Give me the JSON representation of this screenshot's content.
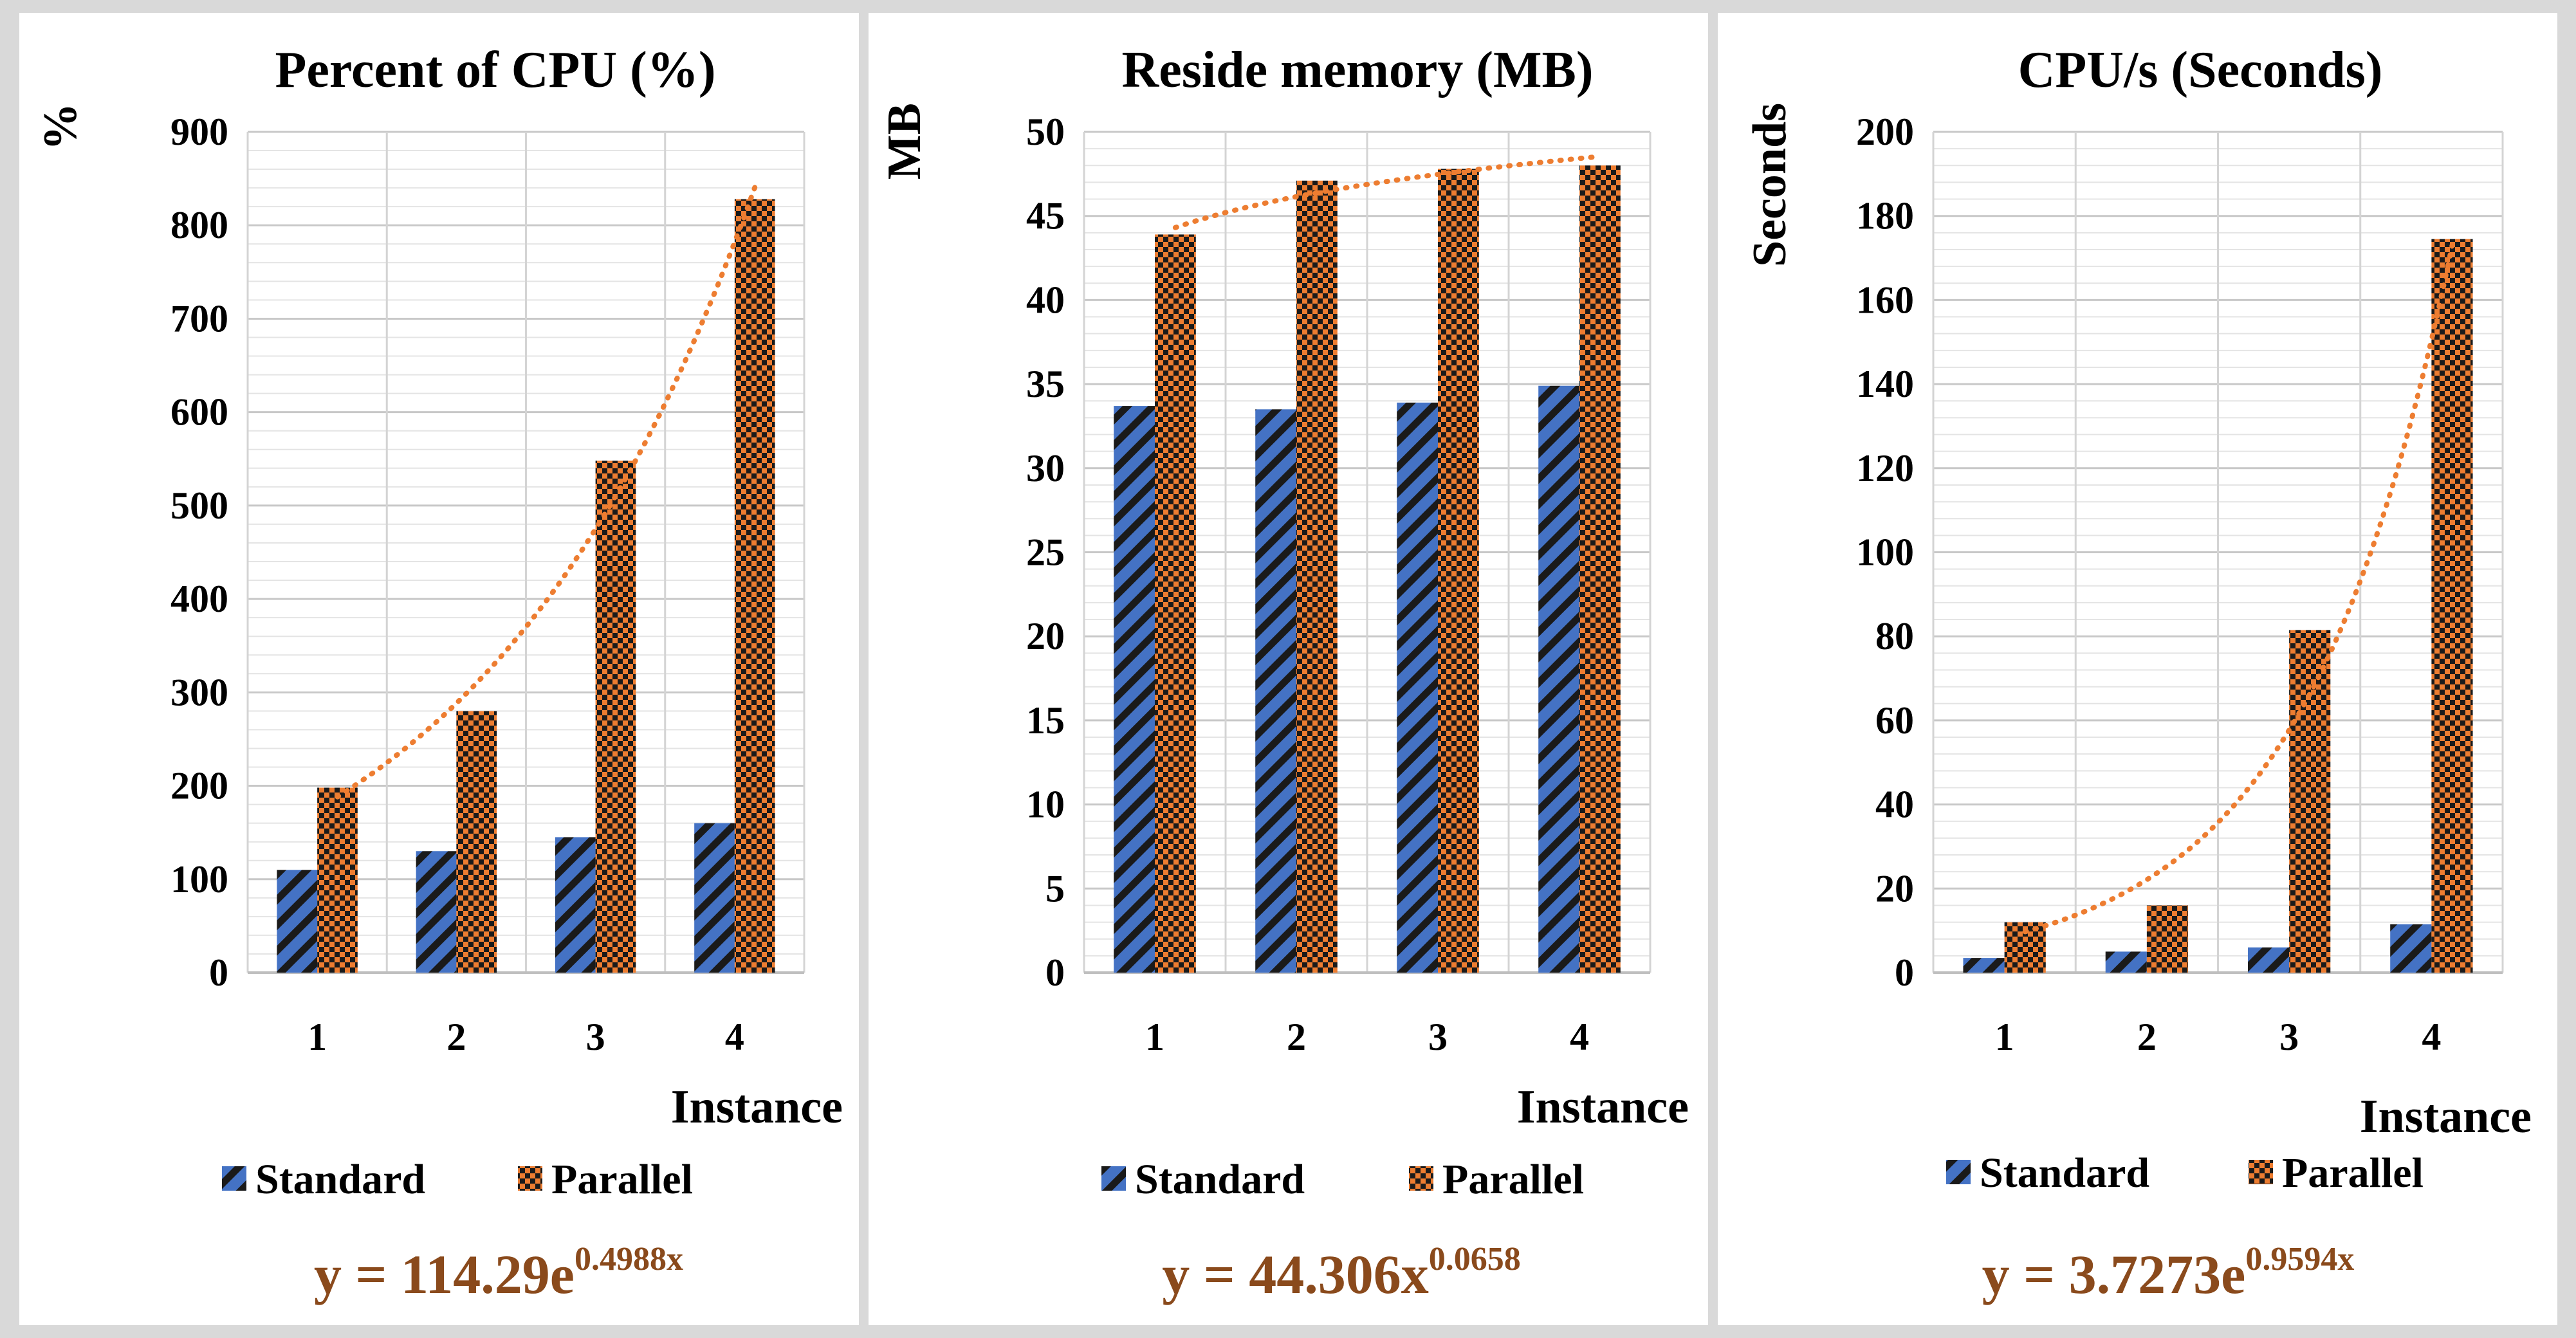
{
  "colors": {
    "standard": "#4472c4",
    "parallel": "#ed7d31",
    "equation": "#8a4a1c",
    "trendline": "#ed7d31"
  },
  "chart_data": [
    {
      "type": "bar",
      "title": "Percent of CPU (%)",
      "ylabel": "%",
      "xlabel": "Instance",
      "categories": [
        "1",
        "2",
        "3",
        "4"
      ],
      "ylim": [
        0,
        900
      ],
      "ytick_step": 100,
      "yticks": [
        "0",
        "100",
        "200",
        "300",
        "400",
        "500",
        "600",
        "700",
        "800",
        "900"
      ],
      "series": [
        {
          "name": "Standard",
          "values": [
            110,
            130,
            145,
            160
          ]
        },
        {
          "name": "Parallel",
          "values": [
            198,
            280,
            548,
            828
          ]
        }
      ],
      "trendline": {
        "type": "exponential",
        "a": 114.29,
        "b": 0.4988,
        "of_series": "Parallel"
      },
      "equation": {
        "base": "y = 114.29e",
        "exponent": "0.4988x"
      }
    },
    {
      "type": "bar",
      "title": "Reside memory (MB)",
      "ylabel": "MB",
      "xlabel": "Instance",
      "categories": [
        "1",
        "2",
        "3",
        "4"
      ],
      "ylim": [
        0,
        50
      ],
      "ytick_step": 5,
      "yticks": [
        "0",
        "5",
        "10",
        "15",
        "20",
        "25",
        "30",
        "35",
        "40",
        "45",
        "50"
      ],
      "series": [
        {
          "name": "Standard",
          "values": [
            33.7,
            33.5,
            33.9,
            34.9
          ]
        },
        {
          "name": "Parallel",
          "values": [
            43.9,
            47.1,
            47.8,
            48.0
          ]
        }
      ],
      "trendline": {
        "type": "power",
        "a": 44.306,
        "b": 0.0658,
        "of_series": "Parallel"
      },
      "equation": {
        "base": "y = 44.306x",
        "exponent": "0.0658"
      }
    },
    {
      "type": "bar",
      "title": "CPU/s (Seconds)",
      "ylabel": "Seconds",
      "xlabel": "Instance",
      "categories": [
        "1",
        "2",
        "3",
        "4"
      ],
      "ylim": [
        0,
        200
      ],
      "ytick_step": 20,
      "yticks": [
        "0",
        "20",
        "40",
        "60",
        "80",
        "100",
        "120",
        "140",
        "160",
        "180",
        "200"
      ],
      "series": [
        {
          "name": "Standard",
          "values": [
            3.5,
            5,
            6,
            11.5
          ]
        },
        {
          "name": "Parallel",
          "values": [
            12,
            16,
            81.5,
            174.5
          ]
        }
      ],
      "trendline": {
        "type": "exponential",
        "a": 3.7273,
        "b": 0.9594,
        "of_series": "Parallel"
      },
      "equation": {
        "base": "y = 3.7273e",
        "exponent": "0.9594x"
      }
    }
  ]
}
